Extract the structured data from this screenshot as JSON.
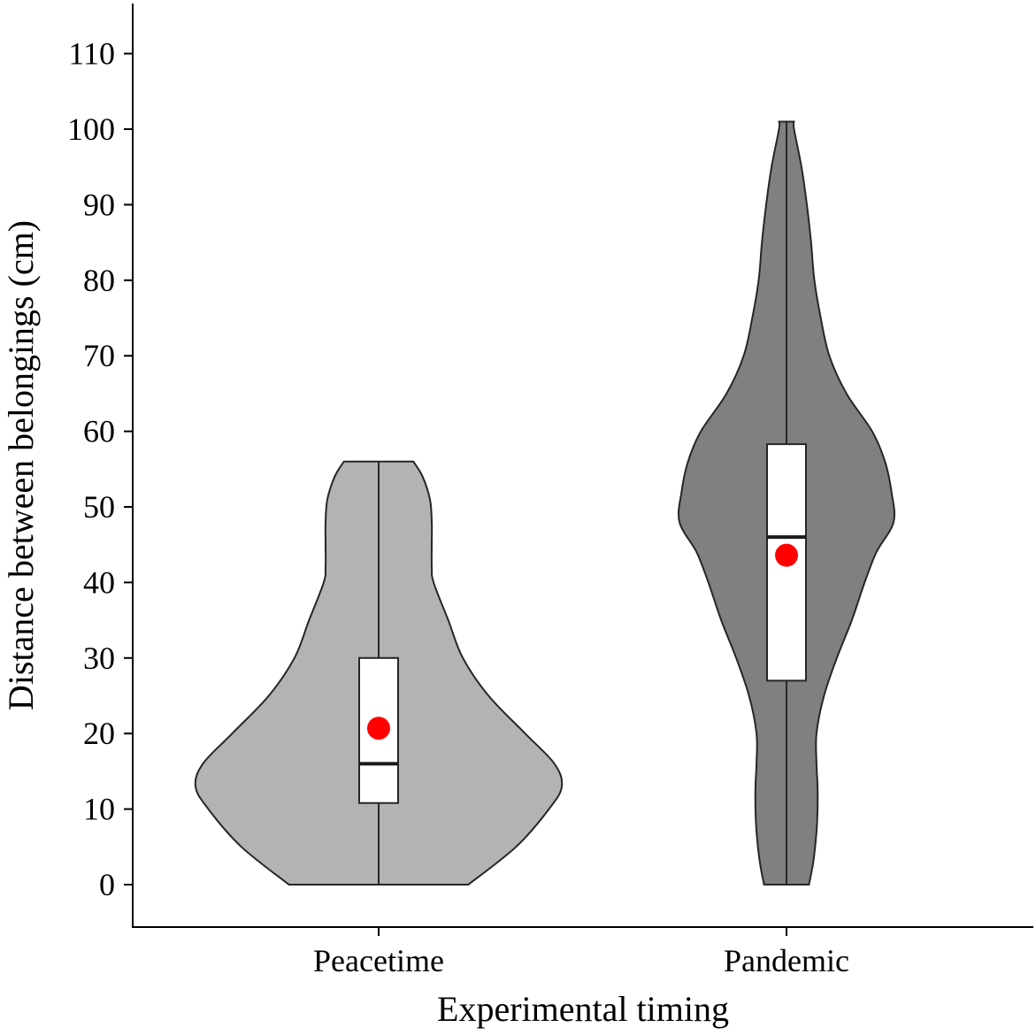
{
  "chart_data": {
    "type": "violin",
    "xlabel": "Experimental timing",
    "ylabel": "Distance between belongings (cm)",
    "ylim": [
      -5.5,
      116
    ],
    "yticks": [
      0,
      10,
      20,
      30,
      40,
      50,
      60,
      70,
      80,
      90,
      100,
      110
    ],
    "ytick_labels": [
      "0",
      "10",
      "20",
      "30",
      "40",
      "50",
      "60",
      "70",
      "80",
      "90",
      "100",
      "110"
    ],
    "categories": [
      "Peacetime",
      "Pandemic"
    ],
    "grid": false,
    "legend": "none",
    "groups": [
      {
        "category": "Peacetime",
        "fill": "#b3b3b3",
        "min": 0,
        "max": 56,
        "q1": 10.8,
        "median": 16,
        "q3": 30,
        "mean": 20.7,
        "density_profile": [
          [
            0,
            0.49
          ],
          [
            5,
            0.75
          ],
          [
            10,
            0.93
          ],
          [
            13,
            1.0
          ],
          [
            16,
            0.96
          ],
          [
            20,
            0.8
          ],
          [
            25,
            0.6
          ],
          [
            30,
            0.46
          ],
          [
            35,
            0.38
          ],
          [
            40,
            0.3
          ],
          [
            42,
            0.29
          ],
          [
            45,
            0.29
          ],
          [
            48,
            0.29
          ],
          [
            51,
            0.28
          ],
          [
            54,
            0.24
          ],
          [
            56,
            0.19
          ]
        ]
      },
      {
        "category": "Pandemic",
        "fill": "#808080",
        "min": 0,
        "max": 101,
        "q1": 27,
        "median": 46,
        "q3": 58.3,
        "mean": 43.6,
        "density_profile": [
          [
            0,
            0.21
          ],
          [
            3,
            0.25
          ],
          [
            7,
            0.28
          ],
          [
            10,
            0.29
          ],
          [
            13,
            0.29
          ],
          [
            16,
            0.28
          ],
          [
            20,
            0.28
          ],
          [
            25,
            0.35
          ],
          [
            30,
            0.47
          ],
          [
            35,
            0.61
          ],
          [
            40,
            0.73
          ],
          [
            44,
            0.84
          ],
          [
            48,
            1.0
          ],
          [
            52,
            0.98
          ],
          [
            56,
            0.92
          ],
          [
            60,
            0.8
          ],
          [
            65,
            0.56
          ],
          [
            70,
            0.4
          ],
          [
            75,
            0.32
          ],
          [
            80,
            0.26
          ],
          [
            85,
            0.23
          ],
          [
            90,
            0.19
          ],
          [
            95,
            0.14
          ],
          [
            100,
            0.07
          ],
          [
            101,
            0.07
          ]
        ]
      }
    ],
    "colors": {
      "mean_marker": "#ff0000",
      "box_fill": "#ffffff",
      "outline": "#262626"
    }
  }
}
